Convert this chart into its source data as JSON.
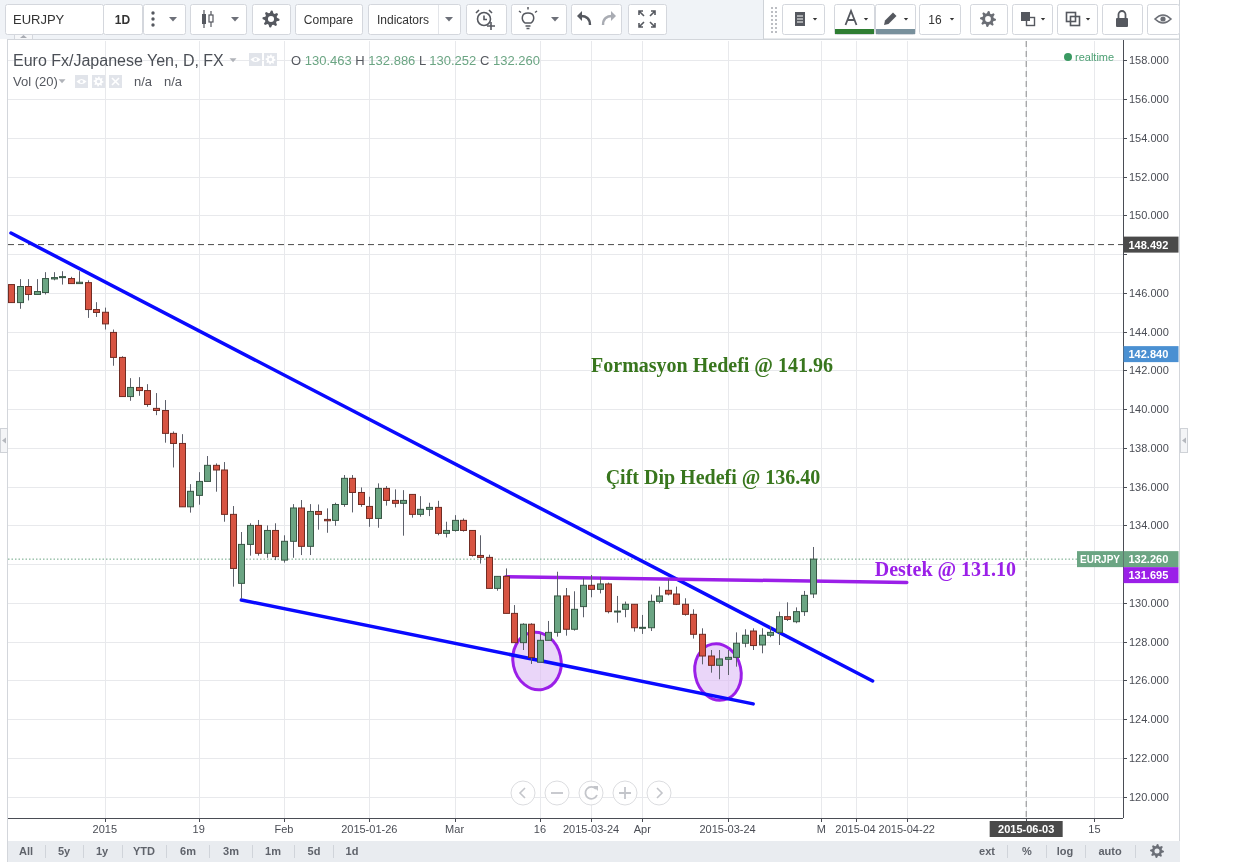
{
  "chart_data": {
    "type": "candlestick",
    "title": "Euro Fx/Japanese Yen, D, FX",
    "subtitle": "O 130.463 H 132.886 L 130.252 C 132.260",
    "categories": [
      null,
      null,
      null,
      null,
      null,
      null,
      null,
      null,
      null,
      null,
      null,
      "2015",
      null,
      null,
      null,
      null,
      null,
      null,
      null,
      null,
      null,
      null,
      "19",
      null,
      null,
      null,
      null,
      null,
      null,
      null,
      null,
      null,
      "Feb",
      null,
      null,
      null,
      null,
      null,
      null,
      null,
      null,
      null,
      "2015-01-26",
      null,
      null,
      null,
      null,
      null,
      null,
      null,
      null,
      null,
      "Mar",
      null,
      null,
      null,
      null,
      null,
      null,
      null,
      null,
      null,
      "16",
      null,
      null,
      null,
      null,
      null,
      "2015-03-24",
      null,
      null,
      null,
      null,
      null,
      "Apr",
      null,
      null,
      null,
      null,
      null,
      null,
      null,
      null,
      null,
      "2015-03-24",
      null,
      null,
      null,
      null,
      null,
      null,
      null,
      null,
      null,
      null,
      "M",
      null,
      null,
      null,
      "2015-04",
      null,
      null,
      null,
      null,
      null,
      "2015-04-22",
      null,
      null,
      null,
      null,
      null,
      null,
      null,
      null,
      null,
      null,
      null,
      null,
      null,
      "2015-06-03",
      null,
      null,
      null,
      null,
      null,
      null,
      null,
      "15",
      null,
      null,
      null
    ],
    "series": [
      {
        "name": "EURJPY",
        "ohlc": [
          [
            146.43,
            146.43,
            145.5,
            145.5
          ],
          [
            145.5,
            146.71,
            145.18,
            146.33
          ],
          [
            146.33,
            146.71,
            145.61,
            145.92
          ],
          [
            145.92,
            146.71,
            145.92,
            146.07
          ],
          [
            146.02,
            147.07,
            145.92,
            146.74
          ],
          [
            146.72,
            147.07,
            146.65,
            146.79
          ],
          [
            146.79,
            147.12,
            146.43,
            146.84
          ],
          [
            146.74,
            146.83,
            146.48,
            146.48
          ],
          [
            146.48,
            147.12,
            146.48,
            146.55
          ],
          [
            146.53,
            146.65,
            144.71,
            145.14
          ],
          [
            145.14,
            145.52,
            144.76,
            144.99
          ],
          [
            145.0,
            145.24,
            144.11,
            144.4
          ],
          [
            143.96,
            144.11,
            142.24,
            142.67
          ],
          [
            142.67,
            142.73,
            140.65,
            140.65
          ],
          [
            140.65,
            141.6,
            140.43,
            141.12
          ],
          [
            141.12,
            141.65,
            140.69,
            140.96
          ],
          [
            140.96,
            141.29,
            140.12,
            140.24
          ],
          [
            140.04,
            140.83,
            139.69,
            139.93
          ],
          [
            139.93,
            140.47,
            138.27,
            138.75
          ],
          [
            138.75,
            138.85,
            136.99,
            138.23
          ],
          [
            138.23,
            138.71,
            134.96,
            134.96
          ],
          [
            134.96,
            136.13,
            134.66,
            135.76
          ],
          [
            135.55,
            136.75,
            135.07,
            136.27
          ],
          [
            136.27,
            137.58,
            136.27,
            137.1
          ],
          [
            137.1,
            137.2,
            135.74,
            136.86
          ],
          [
            136.86,
            137.27,
            134.19,
            134.57
          ],
          [
            134.57,
            135.0,
            130.84,
            131.78
          ],
          [
            131.01,
            133.66,
            130.19,
            133.02
          ],
          [
            133.02,
            134.11,
            132.44,
            134.0
          ],
          [
            134.0,
            134.28,
            132.44,
            132.56
          ],
          [
            132.56,
            134.0,
            132.33,
            133.74
          ],
          [
            133.74,
            134.11,
            132.21,
            132.39
          ],
          [
            132.21,
            133.49,
            132.08,
            133.18
          ],
          [
            133.18,
            135.1,
            132.33,
            134.9
          ],
          [
            134.9,
            135.31,
            132.47,
            132.92
          ],
          [
            132.92,
            135.1,
            132.47,
            134.72
          ],
          [
            134.72,
            135.08,
            133.78,
            134.57
          ],
          [
            134.31,
            134.88,
            133.62,
            134.24
          ],
          [
            134.26,
            135.17,
            133.98,
            135.08
          ],
          [
            135.08,
            136.6,
            134.96,
            136.43
          ],
          [
            136.43,
            136.6,
            134.67,
            135.7
          ],
          [
            135.7,
            135.96,
            134.96,
            135.08
          ],
          [
            134.98,
            135.48,
            133.93,
            134.36
          ],
          [
            134.36,
            136.17,
            133.88,
            135.91
          ],
          [
            135.91,
            136.03,
            135.02,
            135.29
          ],
          [
            135.29,
            135.86,
            134.93,
            135.14
          ],
          [
            135.14,
            135.82,
            133.47,
            135.29
          ],
          [
            135.6,
            135.6,
            134.4,
            134.57
          ],
          [
            134.57,
            135.51,
            134.45,
            134.83
          ],
          [
            134.83,
            135.17,
            134.48,
            134.93
          ],
          [
            134.93,
            135.27,
            133.49,
            133.59
          ],
          [
            133.59,
            134.19,
            133.38,
            133.74
          ],
          [
            133.74,
            134.53,
            133.68,
            134.26
          ],
          [
            134.26,
            134.36,
            133.68,
            133.74
          ],
          [
            133.74,
            133.74,
            132.39,
            132.45
          ],
          [
            132.45,
            133.49,
            132.03,
            132.35
          ],
          [
            132.35,
            132.49,
            130.75,
            130.75
          ],
          [
            130.75,
            131.37,
            130.63,
            131.37
          ],
          [
            131.37,
            131.78,
            129.46,
            129.46
          ],
          [
            129.46,
            129.89,
            127.95,
            127.95
          ],
          [
            127.95,
            128.95,
            127.57,
            128.9
          ],
          [
            128.9,
            128.95,
            126.85,
            127.18
          ],
          [
            126.94,
            128.43,
            126.94,
            128.07
          ],
          [
            128.07,
            129.07,
            128.07,
            128.48
          ],
          [
            128.48,
            131.61,
            128.26,
            130.36
          ],
          [
            130.36,
            130.77,
            128.31,
            128.64
          ],
          [
            128.64,
            130.6,
            128.57,
            129.67
          ],
          [
            129.81,
            131.27,
            129.26,
            130.91
          ],
          [
            130.91,
            131.44,
            130.29,
            130.7
          ],
          [
            130.7,
            131.35,
            130.49,
            130.98
          ],
          [
            130.98,
            131.05,
            129.46,
            129.55
          ],
          [
            129.55,
            130.36,
            128.98,
            129.58
          ],
          [
            129.67,
            130.07,
            129.26,
            129.93
          ],
          [
            129.93,
            129.93,
            128.52,
            128.72
          ],
          [
            128.71,
            129.38,
            128.4,
            128.74
          ],
          [
            128.72,
            130.43,
            128.55,
            130.08
          ],
          [
            130.08,
            130.84,
            129.98,
            130.36
          ],
          [
            130.65,
            131.22,
            130.39,
            130.46
          ],
          [
            130.46,
            130.84,
            129.89,
            129.93
          ],
          [
            129.93,
            130.24,
            129.34,
            129.41
          ],
          [
            129.41,
            129.67,
            128.16,
            128.38
          ],
          [
            128.38,
            128.69,
            126.83,
            127.26
          ],
          [
            127.26,
            127.57,
            126.4,
            126.78
          ],
          [
            126.78,
            127.57,
            126.06,
            127.11
          ],
          [
            127.09,
            127.57,
            126.28,
            127.19
          ],
          [
            127.19,
            128.48,
            126.71,
            127.92
          ],
          [
            127.92,
            128.64,
            127.71,
            128.33
          ],
          [
            128.55,
            128.69,
            127.57,
            127.8
          ],
          [
            127.83,
            128.69,
            127.4,
            128.33
          ],
          [
            128.33,
            128.81,
            128.23,
            128.48
          ],
          [
            128.48,
            129.55,
            127.83,
            129.29
          ],
          [
            129.29,
            130.03,
            129.07,
            129.15
          ],
          [
            129.03,
            129.77,
            128.95,
            129.55
          ],
          [
            129.55,
            130.62,
            129.33,
            130.39
          ],
          [
            130.463,
            132.886,
            130.252,
            132.26
          ],
          null,
          null,
          null,
          null,
          null,
          null,
          null,
          null,
          null,
          null,
          null,
          null,
          null,
          null,
          null,
          null,
          null,
          null,
          null,
          null,
          null,
          null,
          null,
          null,
          null,
          null,
          null,
          null,
          null,
          null,
          null,
          null,
          null,
          null,
          null,
          null
        ],
        "colors": [
          "#d75442",
          "#6ba583",
          "#d75442",
          "#6ba583",
          "#6ba583",
          "#6ba583",
          "#6ba583",
          "#d75442",
          "#6ba583",
          "#d75442",
          "#d75442",
          "#d75442",
          "#d75442",
          "#d75442",
          "#6ba583",
          "#d75442",
          "#d75442",
          "#d75442",
          "#d75442",
          "#d75442",
          "#d75442",
          "#6ba583",
          "#6ba583",
          "#6ba583",
          "#d75442",
          "#d75442",
          "#d75442",
          "#6ba583",
          "#6ba583",
          "#d75442",
          "#6ba583",
          "#d75442",
          "#6ba583",
          "#6ba583",
          "#d75442",
          "#6ba583",
          "#d75442",
          "#d75442",
          "#6ba583",
          "#6ba583",
          "#d75442",
          "#d75442",
          "#d75442",
          "#6ba583",
          "#d75442",
          "#d75442",
          "#6ba583",
          "#d75442",
          "#6ba583",
          "#6ba583",
          "#d75442",
          "#6ba583",
          "#6ba583",
          "#d75442",
          "#d75442",
          "#d75442",
          "#d75442",
          "#6ba583",
          "#d75442",
          "#d75442",
          "#6ba583",
          "#d75442",
          "#6ba583",
          "#6ba583",
          "#6ba583",
          "#d75442",
          "#6ba583",
          "#6ba583",
          "#d75442",
          "#6ba583",
          "#d75442",
          "#6ba583",
          "#6ba583",
          "#d75442",
          "#6ba583",
          "#6ba583",
          "#6ba583",
          "#d75442",
          "#d75442",
          "#d75442",
          "#d75442",
          "#d75442",
          "#d75442",
          "#6ba583",
          "#6ba583",
          "#6ba583",
          "#6ba583",
          "#d75442",
          "#6ba583",
          "#6ba583",
          "#6ba583",
          "#d75442",
          "#6ba583",
          "#6ba583",
          "#6ba583",
          null,
          null,
          null,
          null,
          null,
          null,
          null,
          null,
          null,
          null,
          null,
          null,
          null,
          null,
          null,
          null,
          null,
          null,
          null,
          null,
          null,
          null,
          null,
          null,
          null,
          null,
          null,
          null,
          null,
          null,
          null,
          null,
          null,
          null,
          null,
          null
        ]
      },
      {
        "type": "line",
        "color": "#0a0aff",
        "values": [
          149.09,
          null,
          null,
          null,
          null,
          null,
          null,
          null,
          null,
          null,
          null,
          null,
          null,
          null,
          null,
          null,
          null,
          null,
          null,
          null,
          null,
          null,
          null,
          null,
          null,
          null,
          null,
          null,
          null,
          null,
          null,
          null,
          null,
          null,
          null,
          null,
          null,
          null,
          null,
          null,
          null,
          null,
          null,
          null,
          null,
          null,
          null,
          null,
          null,
          null,
          null,
          null,
          null,
          null,
          null,
          null,
          null,
          null,
          null,
          null,
          null,
          null,
          null,
          null,
          null,
          null,
          null,
          null,
          null,
          null,
          null,
          null,
          null,
          null,
          null,
          null,
          null,
          null,
          null,
          null,
          null,
          null,
          null,
          null,
          null,
          null,
          null,
          null,
          null,
          null,
          null,
          null,
          null,
          null,
          null,
          null,
          null,
          null,
          null,
          null,
          null,
          125.97,
          null,
          null,
          null,
          null,
          null,
          null,
          null,
          null,
          null,
          null,
          null,
          null,
          null,
          null,
          null,
          null,
          null,
          null,
          null,
          null,
          null,
          null,
          null,
          null,
          null,
          null,
          null,
          null,
          null
        ]
      },
      {
        "type": "line",
        "color": "#0a0aff",
        "values": [
          null,
          null,
          null,
          null,
          null,
          null,
          null,
          null,
          null,
          null,
          null,
          null,
          null,
          null,
          null,
          null,
          null,
          null,
          null,
          null,
          null,
          null,
          null,
          null,
          null,
          null,
          null,
          130.15,
          null,
          null,
          null,
          null,
          null,
          null,
          null,
          null,
          null,
          null,
          null,
          null,
          null,
          null,
          null,
          null,
          null,
          null,
          null,
          null,
          null,
          null,
          null,
          null,
          null,
          null,
          null,
          null,
          null,
          null,
          null,
          null,
          null,
          null,
          null,
          null,
          null,
          null,
          null,
          null,
          null,
          null,
          null,
          null,
          null,
          null,
          null,
          null,
          null,
          null,
          null,
          null,
          null,
          null,
          null,
          null,
          null,
          null,
          null,
          124.79,
          null,
          null,
          null,
          null,
          null,
          null,
          null,
          null,
          null,
          null,
          null,
          null,
          null,
          null,
          null,
          null,
          null,
          null,
          null,
          null,
          null,
          null,
          null,
          null,
          null,
          null,
          null,
          null,
          null,
          null,
          null,
          null,
          null,
          null,
          null,
          null,
          null,
          null,
          null,
          null,
          null,
          null,
          null
        ]
      },
      {
        "type": "line",
        "name": "Destek @ 131.10",
        "color": "#9b1fe8",
        "values": [
          null,
          null,
          null,
          null,
          null,
          null,
          null,
          null,
          null,
          null,
          null,
          null,
          null,
          null,
          null,
          null,
          null,
          null,
          null,
          null,
          null,
          null,
          null,
          null,
          null,
          null,
          null,
          null,
          null,
          null,
          null,
          null,
          null,
          null,
          null,
          null,
          null,
          null,
          null,
          null,
          null,
          null,
          null,
          null,
          null,
          null,
          null,
          null,
          null,
          null,
          null,
          null,
          null,
          null,
          null,
          null,
          null,
          null,
          131.35,
          null,
          null,
          null,
          null,
          null,
          null,
          null,
          null,
          null,
          null,
          null,
          null,
          null,
          null,
          null,
          null,
          null,
          null,
          null,
          null,
          null,
          null,
          null,
          null,
          null,
          null,
          null,
          null,
          null,
          null,
          null,
          null,
          null,
          null,
          null,
          null,
          null,
          null,
          null,
          null,
          null,
          null,
          null,
          null,
          null,
          null,
          131.06,
          null,
          null,
          null,
          null,
          null,
          null,
          null,
          null,
          null,
          null,
          null,
          null,
          null,
          null,
          null,
          null,
          null,
          null,
          null,
          null,
          null,
          null,
          null,
          null,
          null
        ]
      }
    ],
    "ylim": [
      118.9,
      159
    ],
    "yticks": [
      {
        "value": 120,
        "label": "120.000"
      },
      {
        "value": 122,
        "label": "122.000"
      },
      {
        "value": 124,
        "label": "124.000"
      },
      {
        "value": 126,
        "label": "126.000"
      },
      {
        "value": 128,
        "label": "128.000"
      },
      {
        "value": 130,
        "label": "130.000"
      },
      {
        "value": 132,
        "label": null
      },
      {
        "value": 134,
        "label": "134.000"
      },
      {
        "value": 136,
        "label": "136.000"
      },
      {
        "value": 138,
        "label": "138.000"
      },
      {
        "value": 140,
        "label": "140.000"
      },
      {
        "value": 142,
        "label": "142.000"
      },
      {
        "value": 144,
        "label": "144.000"
      },
      {
        "value": 146,
        "label": "146.000"
      },
      {
        "value": 148,
        "label": null
      },
      {
        "value": 150,
        "label": "150.000"
      },
      {
        "value": 152,
        "label": "152.000"
      },
      {
        "value": 154,
        "label": "154.000"
      },
      {
        "value": 156,
        "label": "156.000"
      },
      {
        "value": 158,
        "label": "158.000"
      }
    ],
    "grid": true,
    "ref_lines": [
      {
        "axis": "y",
        "value": 148.492,
        "label": "148.492",
        "color": "#4a4a4a",
        "line_style": "dashed"
      },
      {
        "axis": "y",
        "value": 132.26,
        "label": "132.260",
        "color": "#6ba583",
        "line_style": "dotted"
      },
      {
        "axis": "x",
        "value": "2015-06-03",
        "color": "#4a4a4a",
        "line_style": "dashed"
      }
    ],
    "annotations": [
      "EURJPY",
      "1D",
      "Compare",
      "Indicators",
      "16",
      "Vol (20)",
      "n/a",
      "n/a",
      "realtime",
      "All",
      "5y",
      "1y",
      "YTD",
      "6m",
      "3m",
      "1m",
      "5d",
      "1d",
      "ext",
      "%",
      "log",
      "auto",
      "Formasyon Hedefi @ 141.96",
      "Çift Dip Hedefi @ 136.40",
      "142.840",
      "131.695"
    ]
  }
}
